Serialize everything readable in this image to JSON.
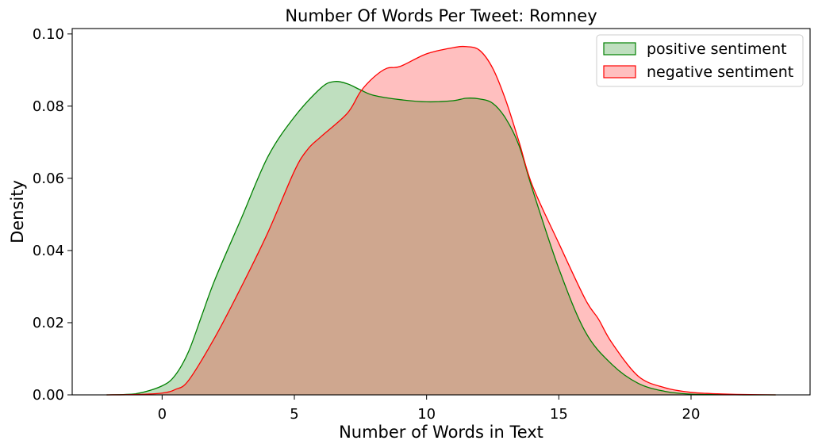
{
  "chart_data": {
    "type": "area",
    "title": "Number Of Words Per Tweet: Romney",
    "xlabel": "Number of Words in Text",
    "ylabel": "Density",
    "xlim": [
      -3.4,
      24.5
    ],
    "ylim": [
      0,
      0.1015
    ],
    "xticks": [
      0,
      5,
      10,
      15,
      20
    ],
    "yticks": [
      0.0,
      0.02,
      0.04,
      0.06,
      0.08,
      0.1
    ],
    "xtick_labels": [
      "0",
      "5",
      "10",
      "15",
      "20"
    ],
    "ytick_labels": [
      "0.00",
      "0.02",
      "0.04",
      "0.06",
      "0.08",
      "0.10"
    ],
    "grid": false,
    "legend_position": "top-right",
    "series": [
      {
        "name": "positive sentiment",
        "color": "#008000",
        "fill": "#008000",
        "x": [
          -2.1,
          -1.0,
          0.0,
          0.5,
          1.0,
          1.5,
          2.0,
          3.0,
          4.0,
          5.0,
          6.0,
          6.5,
          7.0,
          7.5,
          8.0,
          9.0,
          10.0,
          11.0,
          11.5,
          12.0,
          12.5,
          13.0,
          13.5,
          14.0,
          15.0,
          16.0,
          17.0,
          18.0,
          19.0,
          20.0,
          21.0,
          22.0,
          23.2
        ],
        "y": [
          0.0,
          0.0003,
          0.0025,
          0.0055,
          0.012,
          0.022,
          0.032,
          0.049,
          0.066,
          0.077,
          0.085,
          0.0868,
          0.0862,
          0.0845,
          0.083,
          0.0818,
          0.0812,
          0.0815,
          0.0822,
          0.082,
          0.0808,
          0.0765,
          0.069,
          0.057,
          0.035,
          0.0175,
          0.0085,
          0.0032,
          0.001,
          0.0002,
          0.0001,
          0.0,
          0.0
        ]
      },
      {
        "name": "negative sentiment",
        "color": "#ff0000",
        "fill": "#ff0000",
        "x": [
          -2.1,
          -1.0,
          0.0,
          0.5,
          1.0,
          2.0,
          3.0,
          4.0,
          5.0,
          5.5,
          6.0,
          7.0,
          7.5,
          8.0,
          8.5,
          9.0,
          10.0,
          11.0,
          11.5,
          12.0,
          12.5,
          13.0,
          13.5,
          14.0,
          15.0,
          16.0,
          16.5,
          17.0,
          18.0,
          19.0,
          20.0,
          21.0,
          22.0,
          23.2
        ],
        "y": [
          0.0,
          0.0001,
          0.0005,
          0.0015,
          0.004,
          0.016,
          0.03,
          0.045,
          0.062,
          0.068,
          0.0715,
          0.078,
          0.084,
          0.088,
          0.0905,
          0.091,
          0.0945,
          0.0962,
          0.0965,
          0.0955,
          0.0905,
          0.0815,
          0.07,
          0.058,
          0.042,
          0.0265,
          0.021,
          0.0145,
          0.0052,
          0.002,
          0.0007,
          0.0003,
          0.0001,
          0.0
        ]
      }
    ]
  }
}
